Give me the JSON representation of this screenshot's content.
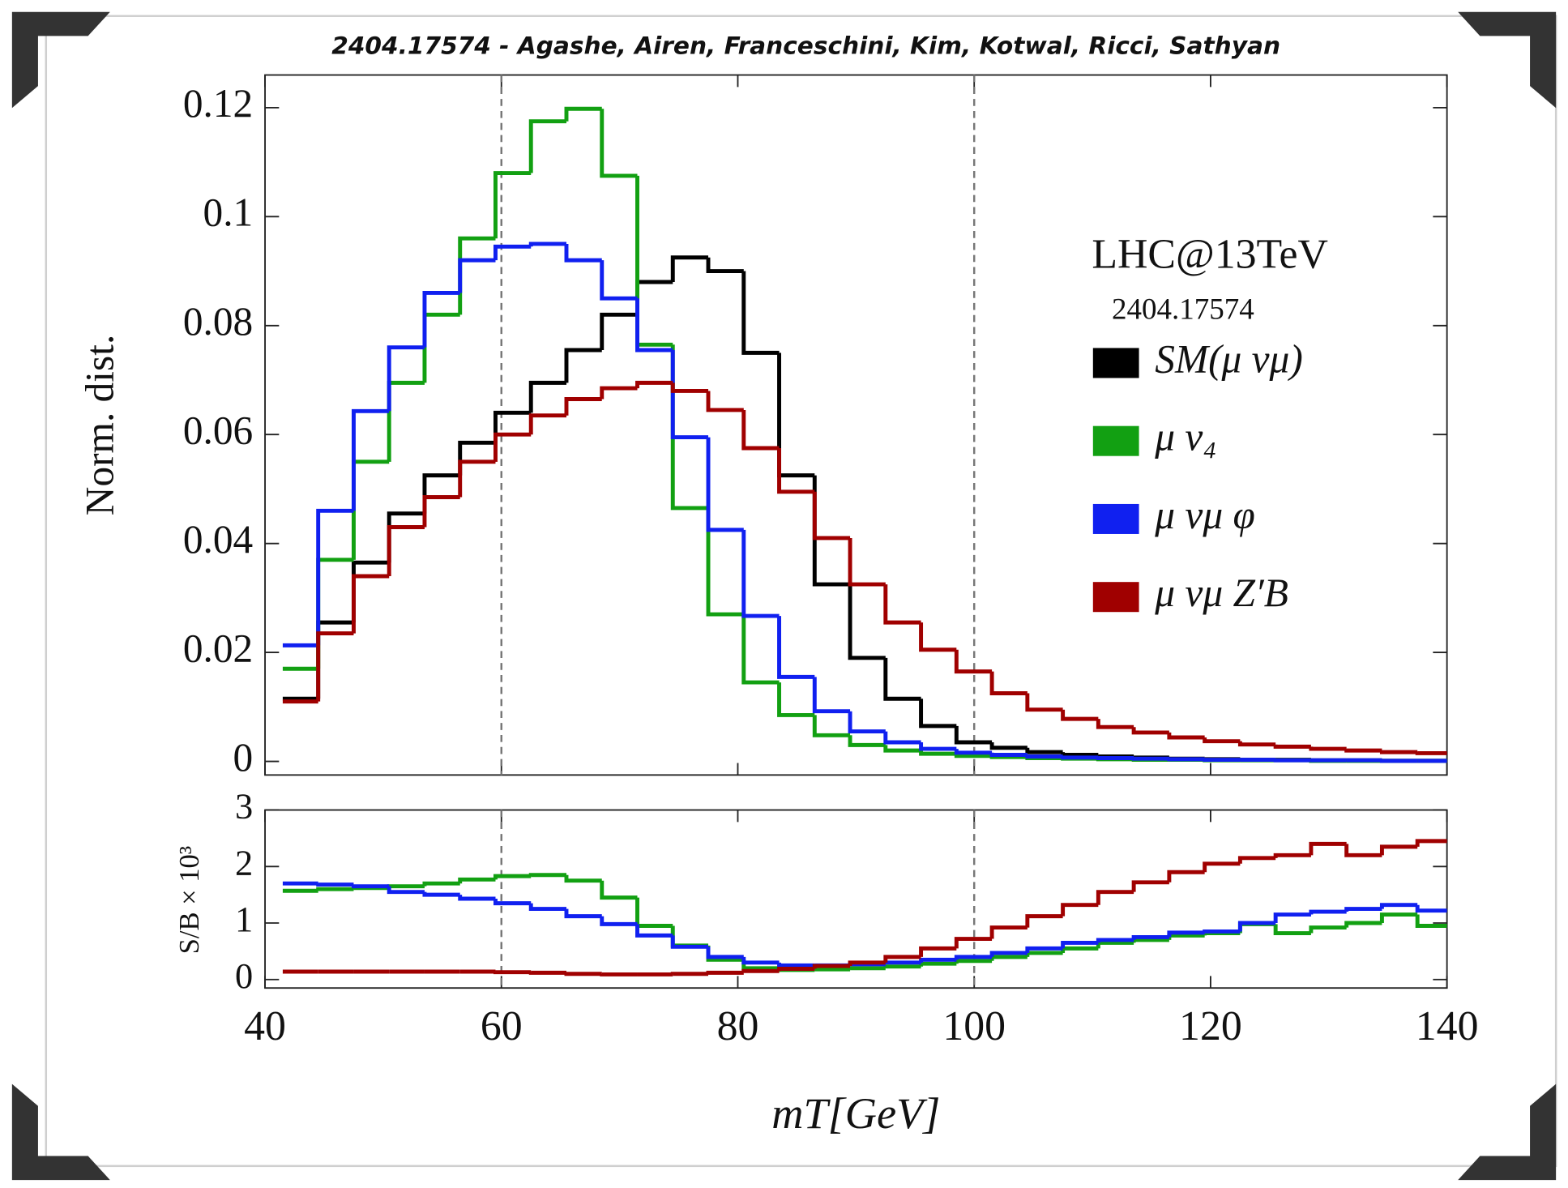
{
  "chart_data": [
    {
      "type": "histogram",
      "title": "2404.17574 - Agashe, Airen, Franceschini, Kim, Kotwal, Ricci, Sathyan",
      "ylabel": "Norm. dist.",
      "annotations": [
        "LHC@13TeV",
        "2404.17574"
      ],
      "bins": [
        41.5,
        44.5,
        47.5,
        50.5,
        53.5,
        56.5,
        59.5,
        62.5,
        65.5,
        68.5,
        71.5,
        74.5,
        77.5,
        80.5,
        83.5,
        86.5,
        89.5,
        92.5,
        95.5,
        98.5,
        101.5,
        104.5,
        107.5,
        110.5,
        113.5,
        116.5,
        119.5,
        122.5,
        125.5,
        128.5,
        131.5,
        134.5,
        137.5,
        140
      ],
      "xlim": [
        40,
        140
      ],
      "ylim": [
        -0.0025,
        0.126
      ],
      "yticks": [
        0,
        0.02,
        0.04,
        0.06,
        0.08,
        0.1,
        0.12
      ],
      "vlines": [
        60,
        100
      ],
      "legend": "right",
      "series": [
        {
          "name": "SM(μ νμ)",
          "color": "#000000",
          "values": [
            0.0115,
            0.0255,
            0.0365,
            0.0455,
            0.0525,
            0.0585,
            0.064,
            0.0695,
            0.0755,
            0.082,
            0.088,
            0.0925,
            0.09,
            0.075,
            0.0525,
            0.0325,
            0.019,
            0.0115,
            0.0065,
            0.0035,
            0.0025,
            0.0017,
            0.0012,
            0.0009,
            0.0007,
            0.0005,
            0.0004,
            0.0003,
            0.0003,
            0.0002,
            0.0002,
            0.0001,
            0.0001
          ]
        },
        {
          "name": "μ ν₄",
          "color": "#12a012",
          "values": [
            0.017,
            0.037,
            0.055,
            0.0695,
            0.082,
            0.096,
            0.108,
            0.1175,
            0.1198,
            0.1075,
            0.0765,
            0.0465,
            0.027,
            0.0145,
            0.0085,
            0.0048,
            0.003,
            0.002,
            0.0014,
            0.001,
            0.0008,
            0.0006,
            0.0005,
            0.0004,
            0.0003,
            0.0003,
            0.0002,
            0.0002,
            0.0002,
            0.0001,
            0.0001,
            0.0001,
            0.0001
          ]
        },
        {
          "name": "μ νμ φ",
          "color": "#1020f0",
          "values": [
            0.0213,
            0.046,
            0.0643,
            0.076,
            0.086,
            0.092,
            0.0945,
            0.095,
            0.092,
            0.085,
            0.0755,
            0.0595,
            0.0425,
            0.0267,
            0.0155,
            0.0092,
            0.0055,
            0.0035,
            0.0023,
            0.0016,
            0.0012,
            0.0009,
            0.0007,
            0.0006,
            0.0005,
            0.0004,
            0.0003,
            0.0003,
            0.0002,
            0.0002,
            0.0002,
            0.0001,
            0.0001
          ]
        },
        {
          "name": "μ νμ Z′B",
          "color": "#a00000",
          "values": [
            0.011,
            0.0235,
            0.034,
            0.043,
            0.0485,
            0.055,
            0.06,
            0.0635,
            0.0665,
            0.0685,
            0.0695,
            0.068,
            0.0645,
            0.0575,
            0.0495,
            0.041,
            0.0325,
            0.0255,
            0.0205,
            0.0165,
            0.0125,
            0.0095,
            0.0078,
            0.0063,
            0.0053,
            0.0044,
            0.0037,
            0.0031,
            0.0027,
            0.0023,
            0.002,
            0.0017,
            0.0015
          ]
        }
      ]
    },
    {
      "type": "histogram",
      "xlabel": "mT[GeV]",
      "ylabel": "S/B × 10³",
      "bins": [
        41.5,
        44.5,
        47.5,
        50.5,
        53.5,
        56.5,
        59.5,
        62.5,
        65.5,
        68.5,
        71.5,
        74.5,
        77.5,
        80.5,
        83.5,
        86.5,
        89.5,
        92.5,
        95.5,
        98.5,
        101.5,
        104.5,
        107.5,
        110.5,
        113.5,
        116.5,
        119.5,
        122.5,
        125.5,
        128.5,
        131.5,
        134.5,
        137.5,
        140
      ],
      "xlim": [
        40,
        140
      ],
      "xticks": [
        40,
        60,
        80,
        100,
        120,
        140
      ],
      "ylim": [
        -0.15,
        3
      ],
      "yticks": [
        0,
        1,
        2,
        3
      ],
      "vlines": [
        60,
        100
      ],
      "series": [
        {
          "color": "#12a012",
          "values": [
            1.57,
            1.6,
            1.62,
            1.65,
            1.7,
            1.77,
            1.83,
            1.85,
            1.75,
            1.45,
            0.95,
            0.6,
            0.35,
            0.2,
            0.17,
            0.18,
            0.2,
            0.23,
            0.28,
            0.33,
            0.4,
            0.47,
            0.55,
            0.65,
            0.7,
            0.78,
            0.82,
            0.98,
            0.82,
            0.92,
            1.0,
            1.15,
            0.95
          ]
        },
        {
          "color": "#1020f0",
          "values": [
            1.7,
            1.68,
            1.65,
            1.55,
            1.5,
            1.43,
            1.35,
            1.25,
            1.12,
            0.98,
            0.78,
            0.58,
            0.4,
            0.3,
            0.25,
            0.25,
            0.27,
            0.3,
            0.35,
            0.4,
            0.47,
            0.55,
            0.65,
            0.7,
            0.75,
            0.83,
            0.85,
            1.0,
            1.15,
            1.2,
            1.25,
            1.32,
            1.22
          ]
        },
        {
          "color": "#a00000",
          "values": [
            0.14,
            0.14,
            0.14,
            0.14,
            0.14,
            0.14,
            0.13,
            0.12,
            0.1,
            0.09,
            0.09,
            0.1,
            0.12,
            0.15,
            0.19,
            0.24,
            0.3,
            0.4,
            0.55,
            0.72,
            0.92,
            1.12,
            1.32,
            1.55,
            1.72,
            1.9,
            2.05,
            2.15,
            2.2,
            2.4,
            2.2,
            2.35,
            2.45
          ]
        }
      ]
    }
  ]
}
